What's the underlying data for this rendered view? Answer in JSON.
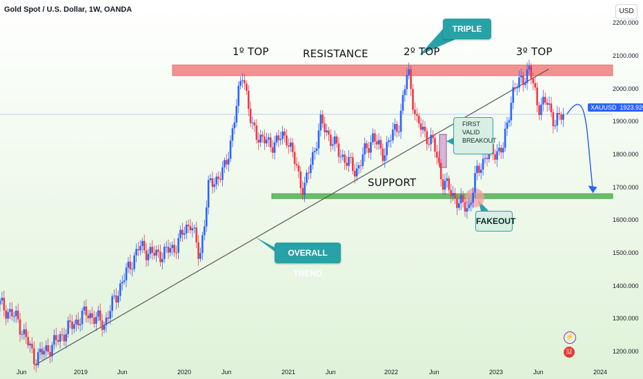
{
  "header": {
    "title": "Gold Spot / U.S. Dollar, 1W, OANDA",
    "currency": "USD"
  },
  "annotations": {
    "resistance": "RESISTANCE",
    "support": "SUPPORT",
    "top1": "1º TOP",
    "top2": "2º TOP",
    "top3": "3º TOP",
    "triple_top": "TRIPLE TOP",
    "overall_trend": "OVERALL TREND",
    "fakeout": "FAKEOUT",
    "first_valid_breakout": "FIRST VALID BREAKOUT"
  },
  "price_tag": {
    "symbol": "XAUUSD",
    "value": "1923.920"
  },
  "icons": [
    "lightning-icon",
    "us-flag-icon"
  ],
  "colors": {
    "bull": "#2962ff",
    "bear": "#f23645",
    "resistance": "#f08080",
    "support": "#5cb85c",
    "callout": "#27a2a7",
    "trendline": "#555555"
  },
  "chart_data": {
    "type": "candlestick",
    "title": "Gold Spot / U.S. Dollar, 1W, OANDA",
    "x_ticks": [
      "Jun",
      "2019",
      "Jun",
      "2020",
      "Jun",
      "2021",
      "Jun",
      "2022",
      "Jun",
      "2023",
      "Jun",
      "2024"
    ],
    "y_ticks": [
      "1200.000",
      "1300.000",
      "1400.000",
      "1500.000",
      "1600.000",
      "1700.000",
      "1800.000",
      "1900.000",
      "2000.000",
      "2100.000",
      "2200.000"
    ],
    "ylim": [
      1160,
      2230
    ],
    "current_price": 1923.92,
    "close_path": [
      [
        "2018-04",
        1345
      ],
      [
        "2018-06",
        1300
      ],
      [
        "2018-08",
        1180
      ],
      [
        "2018-10",
        1220
      ],
      [
        "2018-12",
        1275
      ],
      [
        "2019-02",
        1320
      ],
      [
        "2019-04",
        1285
      ],
      [
        "2019-06",
        1410
      ],
      [
        "2019-08",
        1520
      ],
      [
        "2019-10",
        1495
      ],
      [
        "2019-12",
        1515
      ],
      [
        "2020-02",
        1600
      ],
      [
        "2020-03",
        1480
      ],
      [
        "2020-04",
        1700
      ],
      [
        "2020-06",
        1760
      ],
      [
        "2020-08",
        2060
      ],
      [
        "2020-09",
        1880
      ],
      [
        "2020-11",
        1830
      ],
      [
        "2021-01",
        1860
      ],
      [
        "2021-03",
        1690
      ],
      [
        "2021-05",
        1900
      ],
      [
        "2021-07",
        1810
      ],
      [
        "2021-09",
        1750
      ],
      [
        "2021-11",
        1860
      ],
      [
        "2021-12",
        1800
      ],
      [
        "2022-02",
        1900
      ],
      [
        "2022-03",
        2060
      ],
      [
        "2022-04",
        1900
      ],
      [
        "2022-06",
        1830
      ],
      [
        "2022-07",
        1720
      ],
      [
        "2022-09",
        1650
      ],
      [
        "2022-10",
        1640
      ],
      [
        "2022-11",
        1750
      ],
      [
        "2022-12",
        1800
      ],
      [
        "2023-02",
        1820
      ],
      [
        "2023-03",
        1990
      ],
      [
        "2023-05",
        2060
      ],
      [
        "2023-06",
        1950
      ],
      [
        "2023-07",
        1960
      ],
      [
        "2023-08",
        1900
      ],
      [
        "2023-09",
        1923.92
      ]
    ],
    "levels": {
      "resistance": [
        2050,
        2070
      ],
      "support": [
        1670,
        1680
      ]
    },
    "trendline": [
      [
        "2018-08",
        1160
      ],
      [
        "2023-05",
        2045
      ]
    ],
    "projection": [
      [
        "2023-09",
        1923.92
      ],
      [
        "2023-12",
        1690
      ]
    ]
  }
}
